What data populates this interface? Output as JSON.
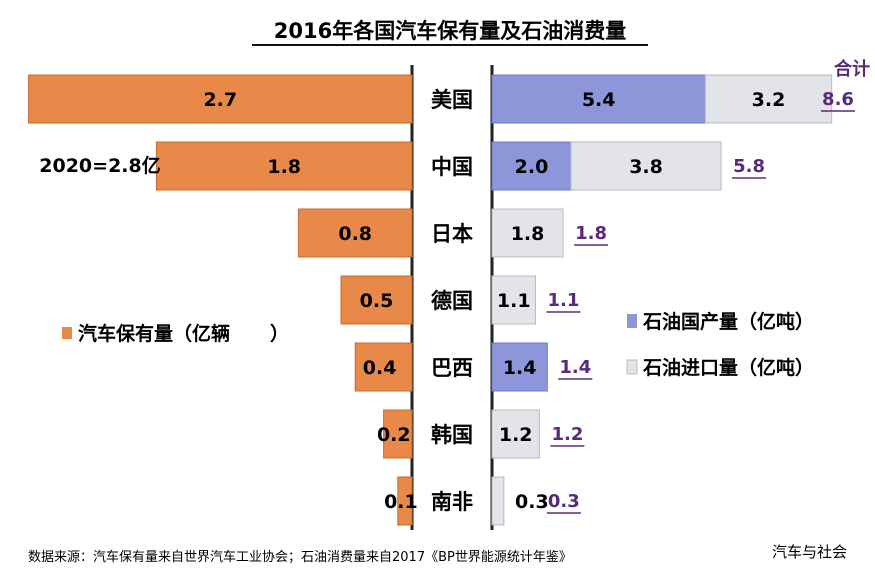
{
  "chart_data": {
    "type": "bar",
    "title": "2016年各国汽车保有量及石油消费量",
    "categories": [
      "美国",
      "中国",
      "日本",
      "德国",
      "巴西",
      "韩国",
      "南非"
    ],
    "vehicle_series": {
      "name": "汽车保有量（亿辆",
      "values": [
        2.7,
        1.8,
        0.8,
        0.5,
        0.4,
        0.2,
        0.1
      ],
      "labels": [
        "2.7",
        "1.8",
        "0.8",
        "0.5",
        "0.4",
        "0.2",
        "0.1"
      ],
      "color": "#E8894A"
    },
    "oil_series": [
      {
        "name": "石油国产量（亿吨）",
        "values": [
          5.4,
          2.0,
          0,
          0,
          1.4,
          0,
          0
        ],
        "labels": [
          "5.4",
          "2.0",
          "",
          "",
          "1.4",
          "",
          ""
        ],
        "color": "#8E96DA"
      },
      {
        "name": "石油进口量（亿吨）",
        "values": [
          3.2,
          3.8,
          1.8,
          1.1,
          0,
          1.2,
          0.3
        ],
        "labels": [
          "3.2",
          "3.8",
          "1.8",
          "1.1",
          "",
          "1.2",
          "0.3"
        ],
        "color": "#E3E4EA"
      }
    ],
    "totals_header": "合计",
    "totals": [
      "8.6",
      "5.8",
      "1.8",
      "1.1",
      "1.4",
      "1.2",
      "0.3"
    ],
    "annotation": "2020=2.8亿",
    "legend_vehicle_placement": "left-middle",
    "legend_oil_placement": "right-middle"
  },
  "footer": {
    "source": "数据来源：汽车保有量来自世界汽车工业协会；石油消费量来自2017《BP世界能源统计年鉴》",
    "watermark": "汽车与社会"
  }
}
